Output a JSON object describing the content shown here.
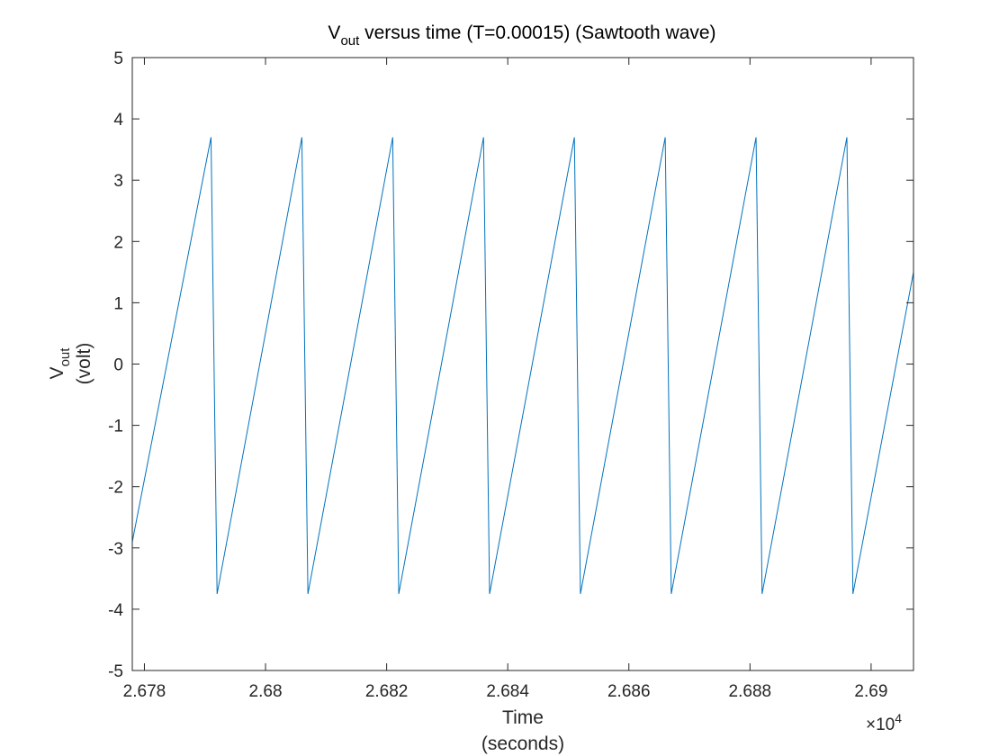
{
  "chart_data": {
    "type": "line",
    "title": {
      "main": "V",
      "subscript": "out",
      "rest": " versus time (T=0.00015) (Sawtooth wave)"
    },
    "xlabel": {
      "line1": "Time",
      "line2": "(seconds)"
    },
    "ylabel": {
      "main": "V",
      "subscript": "out",
      "line2": "(volt)"
    },
    "xlim": [
      26778,
      26907
    ],
    "ylim": [
      -5,
      5
    ],
    "x_exponent": {
      "prefix": "×10",
      "power": "4"
    },
    "x_ticks": [
      26780,
      26800,
      26820,
      26840,
      26860,
      26880,
      26900
    ],
    "x_tick_labels": [
      "2.678",
      "2.68",
      "2.682",
      "2.684",
      "2.686",
      "2.688",
      "2.69"
    ],
    "y_ticks": [
      -5,
      -4,
      -3,
      -2,
      -1,
      0,
      1,
      2,
      3,
      4,
      5
    ],
    "y_tick_labels": [
      "-5",
      "-4",
      "-3",
      "-2",
      "-1",
      "0",
      "1",
      "2",
      "3",
      "4",
      "5"
    ],
    "grid": false,
    "box": true,
    "series": [
      {
        "color": "#0072BD",
        "x": [
          26778,
          26791,
          26792,
          26806,
          26807,
          26821,
          26822,
          26836,
          26837,
          26851,
          26852,
          26866,
          26867,
          26881,
          26882,
          26896,
          26897,
          26907
        ],
        "y": [
          -2.9,
          3.7,
          -3.75,
          3.7,
          -3.75,
          3.7,
          -3.75,
          3.7,
          -3.75,
          3.7,
          -3.75,
          3.7,
          -3.75,
          3.7,
          -3.75,
          3.7,
          -3.75,
          1.5
        ]
      }
    ]
  }
}
